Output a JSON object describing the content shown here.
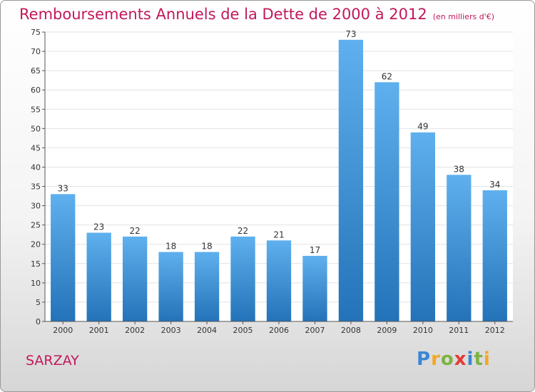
{
  "header": {
    "title": "Remboursements Annuels de la Dette de 2000 à 2012",
    "unit_note": "(en milliers d'€)"
  },
  "footer": {
    "town": "SARZAY",
    "logo_letters": [
      "P",
      "r",
      "o",
      "x",
      "i",
      "t",
      "i"
    ],
    "logo_colors": [
      "#3a86d4",
      "#f5a623",
      "#7cb342",
      "#e53935",
      "#3a86d4",
      "#7cb342",
      "#f5a623"
    ]
  },
  "colors": {
    "bar_top": "#5fb0ee",
    "bar_bottom": "#2472b8",
    "accent": "#c2185b"
  },
  "chart_data": {
    "type": "bar",
    "title": "Remboursements Annuels de la Dette de 2000 à 2012",
    "xlabel": "",
    "ylabel": "",
    "categories": [
      "2000",
      "2001",
      "2002",
      "2003",
      "2004",
      "2005",
      "2006",
      "2007",
      "2008",
      "2009",
      "2010",
      "2011",
      "2012"
    ],
    "values": [
      33,
      23,
      22,
      18,
      18,
      22,
      21,
      17,
      73,
      62,
      49,
      38,
      34
    ],
    "ylim": [
      0,
      75
    ],
    "yticks": [
      0,
      5,
      10,
      15,
      20,
      25,
      30,
      35,
      40,
      45,
      50,
      55,
      60,
      65,
      70,
      75
    ],
    "grid": true,
    "legend": "none"
  }
}
